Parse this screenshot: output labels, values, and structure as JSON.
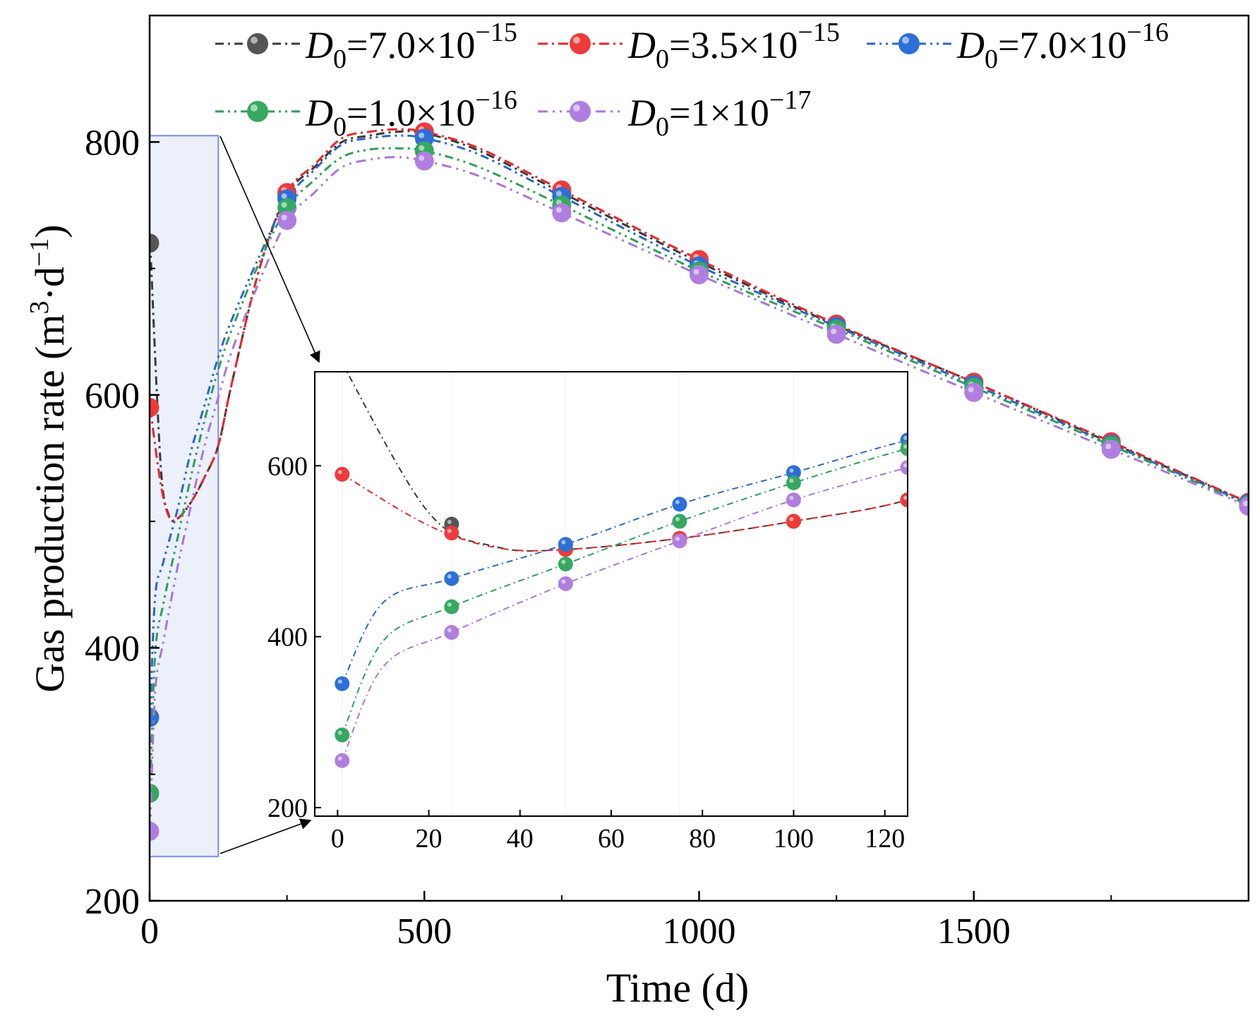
{
  "chart_data": {
    "type": "line",
    "xlabel": "Time (d)",
    "ylabel": "Gas production rate (m3·d−1)",
    "ylabel_parts": {
      "main": "Gas production rate (m",
      "unit_sup": "3",
      "mid": "·d",
      "exp_sup": "−1",
      "end": ")"
    },
    "xlim": [
      0,
      2000
    ],
    "ylim": [
      200,
      900
    ],
    "xticks": [
      0,
      500,
      1000,
      1500
    ],
    "yticks": [
      200,
      400,
      600,
      800
    ],
    "legend_position": "top",
    "legend_var": "D",
    "legend_sub": "0",
    "series": [
      {
        "name": "D0=7.0×10−15",
        "coef": "7.0",
        "exp": "−15",
        "color": "#3a3a3a",
        "marker_color": "#555555",
        "x": [
          1,
          20,
          35,
          50,
          75,
          100,
          125,
          150,
          200,
          250,
          300,
          350,
          400,
          450,
          500,
          600,
          750,
          1000,
          1250,
          1500,
          1750,
          2000
        ],
        "y": [
          720,
          545,
          505,
          502,
          515,
          535,
          560,
          610,
          700,
          758,
          780,
          800,
          805,
          808,
          807,
          793,
          760,
          705,
          655,
          610,
          562,
          515
        ]
      },
      {
        "name": "D0=3.5×10−15",
        "coef": "3.5",
        "exp": "−15",
        "color": "#e8262a",
        "marker_color": "#ee3a3a",
        "x": [
          1,
          20,
          35,
          50,
          75,
          100,
          125,
          150,
          200,
          250,
          300,
          350,
          400,
          450,
          500,
          600,
          750,
          1000,
          1250,
          1500,
          1750,
          2000
        ],
        "y": [
          590,
          530,
          504,
          502,
          515,
          535,
          560,
          610,
          700,
          760,
          782,
          803,
          808,
          810,
          808,
          795,
          762,
          707,
          656,
          610,
          563,
          515
        ]
      },
      {
        "name": "D0=7.0×10−16",
        "coef": "7.0",
        "exp": "−16",
        "color": "#2a66c9",
        "marker_color": "#2d6fd8",
        "x": [
          1,
          10,
          25,
          50,
          75,
          100,
          125,
          150,
          200,
          250,
          300,
          350,
          400,
          450,
          500,
          600,
          750,
          1000,
          1250,
          1500,
          1750,
          2000
        ],
        "y": [
          345,
          440,
          468,
          508,
          555,
          592,
          630,
          660,
          710,
          755,
          778,
          798,
          803,
          805,
          803,
          790,
          757,
          702,
          654,
          608,
          561,
          514
        ]
      },
      {
        "name": "D0=1.0×10−16",
        "coef": "1.0",
        "exp": "−16",
        "color": "#2e9e57",
        "marker_color": "#37a862",
        "x": [
          1,
          10,
          25,
          50,
          75,
          100,
          125,
          150,
          200,
          250,
          300,
          350,
          400,
          450,
          500,
          600,
          750,
          1000,
          1250,
          1500,
          1750,
          2000
        ],
        "y": [
          285,
          395,
          435,
          485,
          535,
          580,
          620,
          652,
          705,
          748,
          770,
          788,
          794,
          795,
          793,
          780,
          750,
          698,
          652,
          606,
          560,
          513
        ]
      },
      {
        "name": "D0=1×10−17",
        "coef": "1",
        "exp": "−17",
        "color": "#a875dc",
        "marker_color": "#b07ee0",
        "x": [
          1,
          10,
          25,
          50,
          75,
          100,
          125,
          150,
          200,
          250,
          300,
          350,
          400,
          450,
          500,
          600,
          750,
          1000,
          1250,
          1500,
          1750,
          2000
        ],
        "y": [
          255,
          365,
          405,
          462,
          512,
          560,
          598,
          635,
          690,
          738,
          760,
          780,
          786,
          788,
          785,
          773,
          744,
          695,
          648,
          602,
          557,
          512
        ]
      }
    ],
    "marker_x": [
      0,
      250,
      500,
      750,
      1000,
      1250,
      1500,
      1750,
      2000
    ],
    "inset": {
      "xlim": [
        -5,
        125
      ],
      "ylim": [
        190,
        710
      ],
      "xticks": [
        0,
        20,
        40,
        60,
        80,
        100,
        120
      ],
      "yticks": [
        200,
        400,
        600
      ],
      "marker_x": [
        1,
        25,
        50,
        75,
        100,
        125
      ],
      "zoom_box": {
        "x0": 0,
        "x1": 125,
        "y0": 235,
        "y1": 805
      }
    }
  }
}
